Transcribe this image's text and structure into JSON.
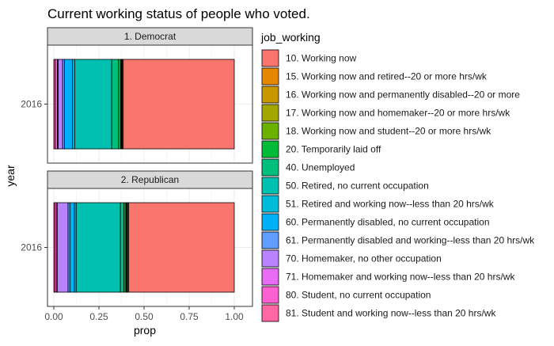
{
  "chart_data": {
    "type": "bar",
    "title": "Current working status of people who voted.",
    "xlabel": "prop",
    "ylabel": "year",
    "xlim": [
      0,
      1
    ],
    "x_ticks": [
      "0.00",
      "0.25",
      "0.50",
      "0.75",
      "1.00"
    ],
    "x_tick_values": [
      0,
      0.25,
      0.5,
      0.75,
      1.0
    ],
    "orientation": "horizontal",
    "stacked": true,
    "grid": true,
    "legend_position": "right",
    "legend_title": "job_working",
    "categories": [
      "10. Working now",
      "15. Working now and retired--20 or more hrs/wk",
      "16. Working now and permanently disabled--20 or more",
      "17. Working now and homemaker--20 or more hrs/wk",
      "18. Working now and student--20 or more hrs/wk",
      "20. Temporarily laid off",
      "40. Unemployed",
      "50. Retired, no current occupation",
      "51. Retired and working now--less than 20 hrs/wk",
      "60. Permanently disabled, no current occupation",
      "61. Permanently disabled and working--less than 20 hrs/wk",
      "70. Homemaker, no other occupation",
      "71. Homemaker and working now--less than 20 hrs/wk",
      "80. Student, no current occupation",
      "81. Student and working now--less than 20 hrs/wk"
    ],
    "colors": [
      "#F8766D",
      "#E58700",
      "#C99800",
      "#A3A500",
      "#6BB100",
      "#00BA38",
      "#00BF7D",
      "#00C0AF",
      "#00BCD8",
      "#00B0F6",
      "#619CFF",
      "#B983FF",
      "#E76BF3",
      "#FD61D1",
      "#FF67A4"
    ],
    "panels": [
      {
        "strip": "1. Democrat",
        "year": "2016",
        "values": [
          0.615,
          0.005,
          0.003,
          0.002,
          0.004,
          0.012,
          0.038,
          0.205,
          0.012,
          0.045,
          0.01,
          0.025,
          0.004,
          0.012,
          0.008
        ]
      },
      {
        "strip": "2. Republican",
        "year": "2016",
        "values": [
          0.585,
          0.006,
          0.003,
          0.003,
          0.004,
          0.01,
          0.02,
          0.245,
          0.01,
          0.025,
          0.01,
          0.06,
          0.004,
          0.008,
          0.007
        ]
      }
    ]
  }
}
